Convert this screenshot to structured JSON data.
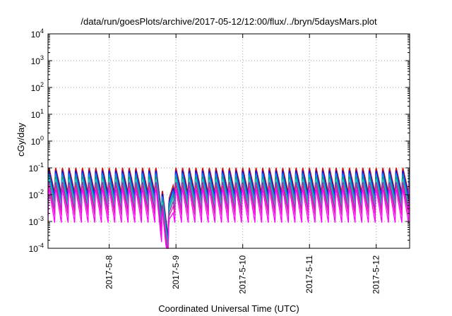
{
  "chart_data": {
    "type": "line",
    "title": "/data/run/goesPlots/archive/2017-05-12/12:00/flux/../bryn/5daysMars.plot",
    "xlabel": "Coordinated Universal Time (UTC)",
    "ylabel": "cGy/day",
    "y_scale": "log",
    "ylim": [
      0.0001,
      10000
    ],
    "xlim_days": [
      "2017-05-07 02:00",
      "2017-05-12 12:00"
    ],
    "y_ticks": [
      {
        "base": "10",
        "exp": "-4",
        "value": 0.0001
      },
      {
        "base": "10",
        "exp": "-3",
        "value": 0.001
      },
      {
        "base": "10",
        "exp": "-2",
        "value": 0.01
      },
      {
        "base": "10",
        "exp": "-1",
        "value": 0.1
      },
      {
        "base": "10",
        "exp": "0",
        "value": 1
      },
      {
        "base": "10",
        "exp": "1",
        "value": 10
      },
      {
        "base": "10",
        "exp": "2",
        "value": 100
      },
      {
        "base": "10",
        "exp": "3",
        "value": 1000
      },
      {
        "base": "10",
        "exp": "4",
        "value": 10000
      }
    ],
    "x_ticks": [
      {
        "label": "2017-5-8",
        "date": "2017-05-08"
      },
      {
        "label": "2017-5-9",
        "date": "2017-05-09"
      },
      {
        "label": "2017-5-10",
        "date": "2017-05-10"
      },
      {
        "label": "2017-5-11",
        "date": "2017-05-11"
      },
      {
        "label": "2017-5-12",
        "date": "2017-05-12"
      }
    ],
    "grid": true,
    "legend": "none",
    "sawtooth_period_hours": 2.4,
    "dip": {
      "start": "2017-05-08 17:00",
      "min": "2017-05-08 21:00",
      "end": "2017-05-08 23:00"
    },
    "series": [
      {
        "color": "#d01010",
        "peak": 0.12,
        "trough": 0.012
      },
      {
        "color": "#1010d0",
        "peak": 0.095,
        "trough": 0.009
      },
      {
        "color": "#0080ff",
        "peak": 0.075,
        "trough": 0.0065
      },
      {
        "color": "#00a080",
        "peak": 0.058,
        "trough": 0.0048
      },
      {
        "color": "#30c0c0",
        "peak": 0.046,
        "trough": 0.0036
      },
      {
        "color": "#9030b0",
        "peak": 0.036,
        "trough": 0.0026
      },
      {
        "color": "#e020a0",
        "peak": 0.027,
        "trough": 0.0017
      },
      {
        "color": "#ff00ff",
        "peak": 0.02,
        "trough": 0.0009
      }
    ]
  }
}
